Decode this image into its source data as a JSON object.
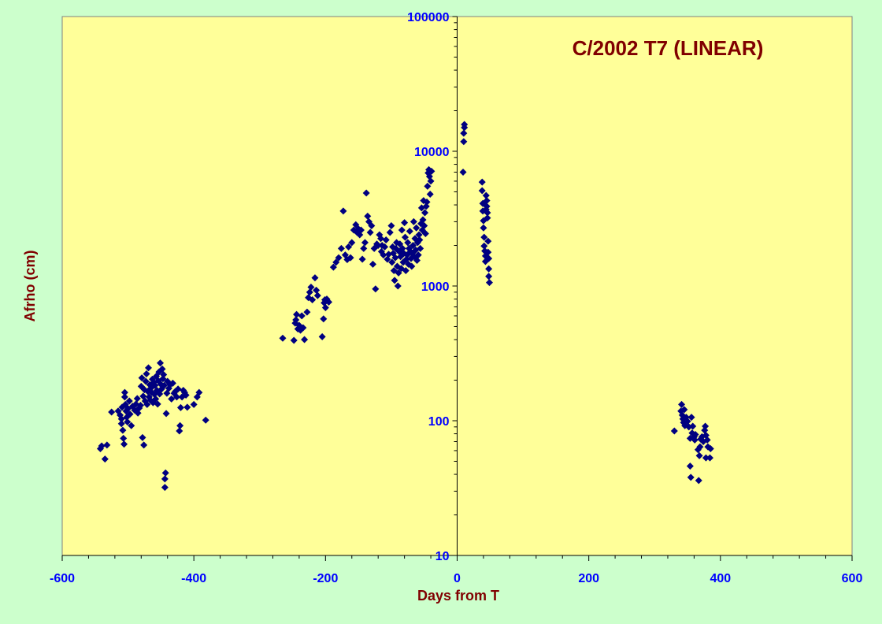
{
  "chart_data": {
    "type": "scatter",
    "title": "C/2002 T7 (LINEAR)",
    "xlabel": "Days from T",
    "ylabel": "Afrho (cm)",
    "xlim": [
      -600,
      600
    ],
    "ylim": [
      10,
      100000
    ],
    "yscale": "log",
    "x_ticks": [
      -600,
      -400,
      -200,
      0,
      200,
      400,
      600
    ],
    "x_tick_labels": [
      "-600",
      "-400",
      "-200",
      "0",
      "200",
      "400",
      "600"
    ],
    "y_ticks": [
      10,
      100,
      1000,
      10000,
      100000
    ],
    "y_tick_labels": [
      "10",
      "100",
      "1000",
      "10000",
      "100000"
    ],
    "grid": false,
    "legend": false,
    "colors": {
      "page_background": "#ccffcc",
      "plot_background": "#ffff99",
      "marker": "#000080",
      "tick_labels": "#0000ff",
      "titles": "#800000"
    },
    "series": [
      {
        "marker": "diamond",
        "points": [
          [
            -542,
            62
          ],
          [
            -540,
            65
          ],
          [
            -535,
            52
          ],
          [
            -532,
            66
          ],
          [
            -525,
            116
          ],
          [
            -515,
            118
          ],
          [
            -512,
            110
          ],
          [
            -510,
            95
          ],
          [
            -510,
            103
          ],
          [
            -509,
            126
          ],
          [
            -508,
            85
          ],
          [
            -507,
            74
          ],
          [
            -506,
            67
          ],
          [
            -505,
            150
          ],
          [
            -505,
            162
          ],
          [
            -504,
            132
          ],
          [
            -503,
            118
          ],
          [
            -502,
            106
          ],
          [
            -501,
            98
          ],
          [
            -500,
            123
          ],
          [
            -498,
            140
          ],
          [
            -497,
            112
          ],
          [
            -495,
            92
          ],
          [
            -493,
            128
          ],
          [
            -490,
            120
          ],
          [
            -488,
            133
          ],
          [
            -486,
            146
          ],
          [
            -485,
            114
          ],
          [
            -483,
            124
          ],
          [
            -481,
            130
          ],
          [
            -480,
            180
          ],
          [
            -479,
            208
          ],
          [
            -478,
            75
          ],
          [
            -477,
            152
          ],
          [
            -476,
            66
          ],
          [
            -475,
            170
          ],
          [
            -474,
            140
          ],
          [
            -473,
            196
          ],
          [
            -472,
            223
          ],
          [
            -471,
            132
          ],
          [
            -470,
            165
          ],
          [
            -469,
            247
          ],
          [
            -468,
            150
          ],
          [
            -467,
            185
          ],
          [
            -466,
            142
          ],
          [
            -465,
            175
          ],
          [
            -464,
            162
          ],
          [
            -463,
            203
          ],
          [
            -462,
            136
          ],
          [
            -461,
            192
          ],
          [
            -460,
            157
          ],
          [
            -459,
            183
          ],
          [
            -458,
            145
          ],
          [
            -457,
            214
          ],
          [
            -456,
            168
          ],
          [
            -455,
            133
          ],
          [
            -454,
            198
          ],
          [
            -453,
            230
          ],
          [
            -452,
            158
          ],
          [
            -451,
            268
          ],
          [
            -450,
            186
          ],
          [
            -449,
            172
          ],
          [
            -448,
            242
          ],
          [
            -447,
            205
          ],
          [
            -446,
            220
          ],
          [
            -445,
            183
          ],
          [
            -444,
            32
          ],
          [
            -444,
            37
          ],
          [
            -443,
            41
          ],
          [
            -442,
            113
          ],
          [
            -441,
            160
          ],
          [
            -440,
            196
          ],
          [
            -438,
            174
          ],
          [
            -436,
            185
          ],
          [
            -434,
            145
          ],
          [
            -432,
            190
          ],
          [
            -430,
            160
          ],
          [
            -428,
            165
          ],
          [
            -426,
            150
          ],
          [
            -424,
            172
          ],
          [
            -422,
            84
          ],
          [
            -421,
            92
          ],
          [
            -420,
            125
          ],
          [
            -418,
            150
          ],
          [
            -416,
            168
          ],
          [
            -414,
            162
          ],
          [
            -412,
            155
          ],
          [
            -410,
            126
          ],
          [
            -400,
            132
          ],
          [
            -395,
            150
          ],
          [
            -392,
            162
          ],
          [
            -382,
            101
          ],
          [
            -265,
            410
          ],
          [
            -248,
            395
          ],
          [
            -246,
            530
          ],
          [
            -245,
            560
          ],
          [
            -244,
            615
          ],
          [
            -242,
            480
          ],
          [
            -240,
            510
          ],
          [
            -238,
            470
          ],
          [
            -236,
            600
          ],
          [
            -234,
            490
          ],
          [
            -232,
            400
          ],
          [
            -228,
            640
          ],
          [
            -226,
            820
          ],
          [
            -224,
            900
          ],
          [
            -222,
            980
          ],
          [
            -220,
            790
          ],
          [
            -216,
            1150
          ],
          [
            -214,
            930
          ],
          [
            -212,
            850
          ],
          [
            -205,
            420
          ],
          [
            -203,
            570
          ],
          [
            -202,
            750
          ],
          [
            -201,
            790
          ],
          [
            -200,
            690
          ],
          [
            -198,
            800
          ],
          [
            -195,
            760
          ],
          [
            -188,
            1380
          ],
          [
            -184,
            1500
          ],
          [
            -180,
            1620
          ],
          [
            -176,
            1900
          ],
          [
            -173,
            3600
          ],
          [
            -170,
            1700
          ],
          [
            -167,
            1570
          ],
          [
            -165,
            1950
          ],
          [
            -162,
            1620
          ],
          [
            -160,
            2100
          ],
          [
            -157,
            2600
          ],
          [
            -154,
            2850
          ],
          [
            -152,
            2500
          ],
          [
            -150,
            2650
          ],
          [
            -148,
            2400
          ],
          [
            -146,
            2600
          ],
          [
            -144,
            1580
          ],
          [
            -142,
            1900
          ],
          [
            -140,
            2100
          ],
          [
            -138,
            4900
          ],
          [
            -136,
            3300
          ],
          [
            -134,
            3000
          ],
          [
            -132,
            2500
          ],
          [
            -130,
            2800
          ],
          [
            -128,
            1450
          ],
          [
            -126,
            1900
          ],
          [
            -124,
            950
          ],
          [
            -122,
            2050
          ],
          [
            -120,
            2000
          ],
          [
            -118,
            2400
          ],
          [
            -116,
            2250
          ],
          [
            -115,
            1800
          ],
          [
            -114,
            2000
          ],
          [
            -112,
            1700
          ],
          [
            -110,
            1950
          ],
          [
            -108,
            2200
          ],
          [
            -106,
            1580
          ],
          [
            -104,
            1720
          ],
          [
            -102,
            2500
          ],
          [
            -100,
            2800
          ],
          [
            -99,
            1500
          ],
          [
            -98,
            1950
          ],
          [
            -97,
            1750
          ],
          [
            -96,
            1300
          ],
          [
            -95,
            1100
          ],
          [
            -94,
            1620
          ],
          [
            -93,
            1900
          ],
          [
            -92,
            2100
          ],
          [
            -91,
            1400
          ],
          [
            -90,
            1000
          ],
          [
            -89,
            1250
          ],
          [
            -88,
            1800
          ],
          [
            -87,
            2050
          ],
          [
            -86,
            1650
          ],
          [
            -85,
            1350
          ],
          [
            -84,
            2600
          ],
          [
            -83,
            1900
          ],
          [
            -82,
            1500
          ],
          [
            -81,
            1750
          ],
          [
            -80,
            2950
          ],
          [
            -79,
            2300
          ],
          [
            -78,
            1300
          ],
          [
            -77,
            1580
          ],
          [
            -76,
            1700
          ],
          [
            -75,
            2100
          ],
          [
            -74,
            1450
          ],
          [
            -73,
            1900
          ],
          [
            -72,
            2550
          ],
          [
            -71,
            1800
          ],
          [
            -70,
            1600
          ],
          [
            -69,
            1400
          ],
          [
            -68,
            1750
          ],
          [
            -67,
            2000
          ],
          [
            -66,
            3000
          ],
          [
            -65,
            1650
          ],
          [
            -64,
            2250
          ],
          [
            -63,
            1850
          ],
          [
            -62,
            2700
          ],
          [
            -61,
            1550
          ],
          [
            -60,
            2100
          ],
          [
            -59,
            1700
          ],
          [
            -58,
            2400
          ],
          [
            -57,
            2200
          ],
          [
            -56,
            1900
          ],
          [
            -55,
            2900
          ],
          [
            -54,
            3800
          ],
          [
            -53,
            2600
          ],
          [
            -52,
            3100
          ],
          [
            -51,
            4300
          ],
          [
            -50,
            2800
          ],
          [
            -49,
            3500
          ],
          [
            -48,
            2450
          ],
          [
            -47,
            3900
          ],
          [
            -46,
            4200
          ],
          [
            -45,
            5500
          ],
          [
            -44,
            6900
          ],
          [
            -43,
            7300
          ],
          [
            -42,
            6500
          ],
          [
            -41,
            4800
          ],
          [
            -40,
            6000
          ],
          [
            -39,
            7100
          ],
          [
            9,
            7000
          ],
          [
            10,
            11800
          ],
          [
            10,
            13600
          ],
          [
            11,
            15000
          ],
          [
            11,
            15800
          ],
          [
            38,
            5900
          ],
          [
            38,
            5100
          ],
          [
            39,
            4100
          ],
          [
            39,
            3600
          ],
          [
            40,
            3050
          ],
          [
            40,
            2700
          ],
          [
            41,
            2300
          ],
          [
            41,
            1980
          ],
          [
            42,
            1820
          ],
          [
            43,
            1670
          ],
          [
            43,
            1520
          ],
          [
            44,
            3700
          ],
          [
            44,
            4700
          ],
          [
            45,
            4300
          ],
          [
            45,
            3900
          ],
          [
            46,
            3500
          ],
          [
            46,
            3200
          ],
          [
            47,
            2150
          ],
          [
            47,
            1780
          ],
          [
            48,
            1600
          ],
          [
            48,
            1340
          ],
          [
            48,
            1180
          ],
          [
            49,
            1060
          ],
          [
            330,
            84
          ],
          [
            340,
            118
          ],
          [
            341,
            132
          ],
          [
            342,
            110
          ],
          [
            343,
            103
          ],
          [
            344,
            97
          ],
          [
            345,
            121
          ],
          [
            346,
            92
          ],
          [
            348,
            106
          ],
          [
            350,
            99
          ],
          [
            352,
            90
          ],
          [
            354,
            74
          ],
          [
            354,
            46
          ],
          [
            355,
            38
          ],
          [
            356,
            106
          ],
          [
            357,
            81
          ],
          [
            358,
            91
          ],
          [
            359,
            75
          ],
          [
            360,
            76
          ],
          [
            361,
            72
          ],
          [
            362,
            79
          ],
          [
            366,
            61
          ],
          [
            367,
            36
          ],
          [
            368,
            55
          ],
          [
            369,
            64
          ],
          [
            370,
            73
          ],
          [
            372,
            76
          ],
          [
            374,
            70
          ],
          [
            376,
            85
          ],
          [
            377,
            91
          ],
          [
            378,
            78
          ],
          [
            378,
            53
          ],
          [
            380,
            72
          ],
          [
            381,
            64
          ],
          [
            384,
            53
          ],
          [
            385,
            62
          ]
        ]
      }
    ]
  }
}
